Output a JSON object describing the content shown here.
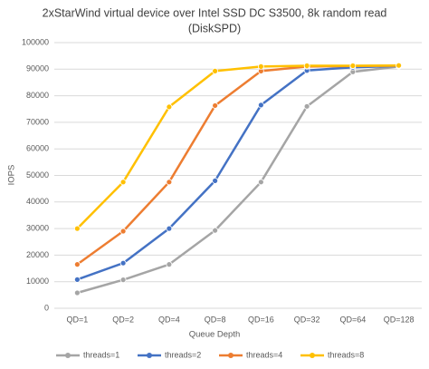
{
  "chart_data": {
    "type": "line",
    "title": [
      "2xStarWind virtual device over Intel SSD DC S3500, 8k random read",
      "(DiskSPD)"
    ],
    "x_label": "Queue Depth",
    "y_label": "IOPS",
    "categories": [
      "QD=1",
      "QD=2",
      "QD=4",
      "QD=8",
      "QD=16",
      "QD=32",
      "QD=64",
      "QD=128"
    ],
    "series": [
      {
        "name": "threads=1",
        "color": "#a5a5a5",
        "values": [
          5800,
          10700,
          16500,
          29300,
          47500,
          76000,
          89000,
          91000
        ]
      },
      {
        "name": "threads=2",
        "color": "#4472c4",
        "values": [
          10800,
          17000,
          30000,
          48000,
          76500,
          89500,
          90700,
          91200
        ]
      },
      {
        "name": "threads=4",
        "color": "#ed7d31",
        "values": [
          16500,
          29000,
          47500,
          76300,
          89300,
          91000,
          91200,
          91300
        ]
      },
      {
        "name": "threads=8",
        "color": "#ffc000",
        "values": [
          30000,
          47500,
          75800,
          89300,
          91000,
          91300,
          91300,
          91400
        ]
      }
    ],
    "ylim": [
      0,
      100000
    ],
    "yticks": [
      0,
      10000,
      20000,
      30000,
      40000,
      50000,
      60000,
      70000,
      80000,
      90000,
      100000
    ],
    "grid": true,
    "legend": "bottom"
  }
}
